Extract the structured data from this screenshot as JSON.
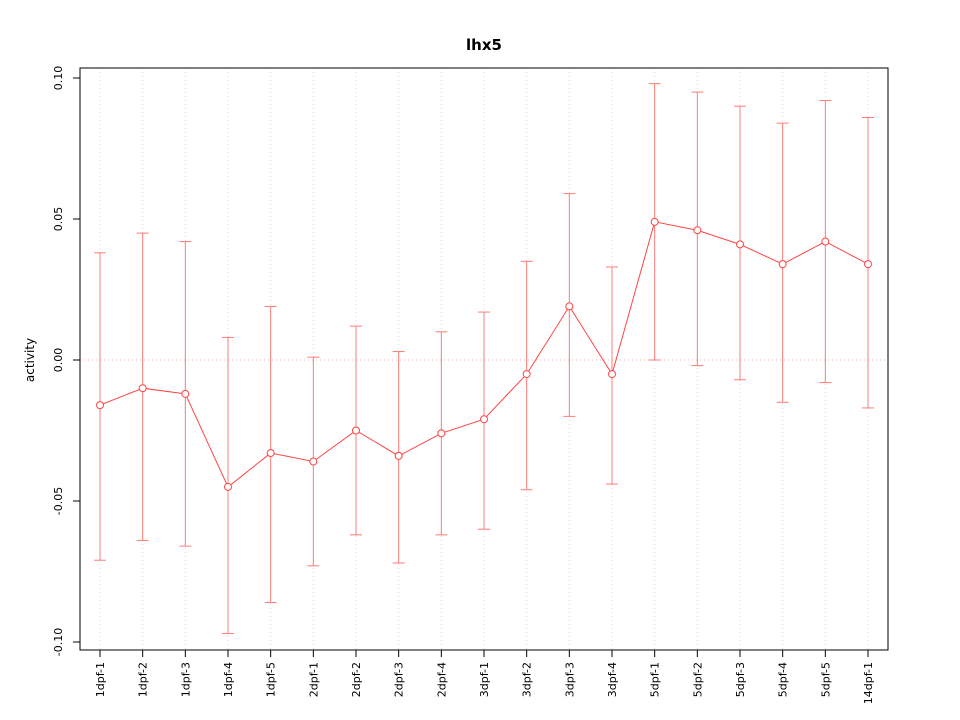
{
  "chart_data": {
    "type": "line",
    "title": "lhx5",
    "xlabel": "",
    "ylabel": "activity",
    "legend": "none",
    "grid": "vertical dotted gridline at each category; dotted horizontal line at y=0",
    "marker": "open-circle",
    "ylim": [
      -0.1,
      0.1
    ],
    "yticks": [
      -0.1,
      -0.05,
      0.0,
      0.05,
      0.1
    ],
    "categories": [
      "1dpf-1",
      "1dpf-2",
      "1dpf-3",
      "1dpf-4",
      "1dpf-5",
      "2dpf-1",
      "2dpf-2",
      "2dpf-3",
      "2dpf-4",
      "3dpf-1",
      "3dpf-2",
      "3dpf-3",
      "3dpf-4",
      "5dpf-1",
      "5dpf-2",
      "5dpf-3",
      "5dpf-4",
      "5dpf-5",
      "14dpf-1"
    ],
    "series": [
      {
        "name": "activity",
        "values": [
          -0.016,
          -0.01,
          -0.012,
          -0.045,
          -0.033,
          -0.036,
          -0.025,
          -0.034,
          -0.026,
          -0.021,
          -0.005,
          0.019,
          -0.005,
          0.049,
          0.046,
          0.041,
          0.034,
          0.042,
          0.034
        ],
        "upper": [
          0.038,
          0.045,
          0.042,
          0.008,
          0.019,
          0.001,
          0.012,
          0.003,
          0.01,
          0.017,
          0.035,
          0.059,
          0.033,
          0.098,
          0.095,
          0.09,
          0.084,
          0.092,
          0.086
        ],
        "lower": [
          -0.071,
          -0.064,
          -0.066,
          -0.097,
          -0.086,
          -0.073,
          -0.062,
          -0.072,
          -0.062,
          -0.06,
          -0.046,
          -0.02,
          -0.044,
          0.0,
          -0.002,
          -0.007,
          -0.015,
          -0.008,
          -0.017
        ]
      }
    ],
    "colors": {
      "series": "#ff4444",
      "errorbar": "#ff7b7b",
      "grid": "#dcdcdc",
      "zero_line": "#f3baba",
      "axis": "#000000",
      "background": "#ffffff"
    }
  }
}
